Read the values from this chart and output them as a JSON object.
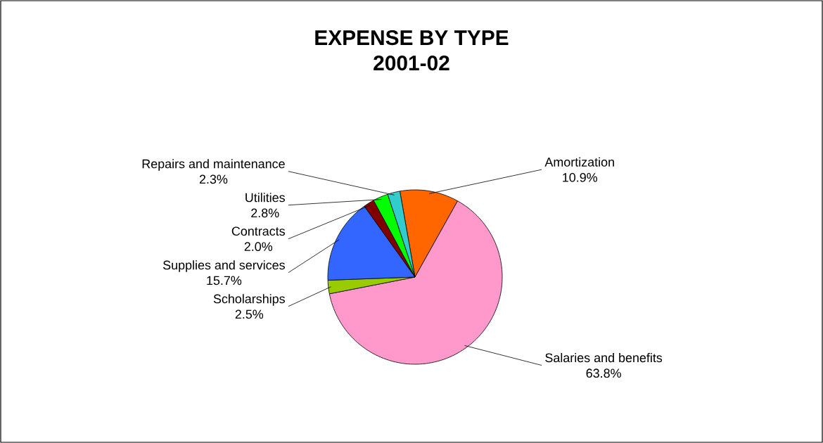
{
  "chart_data": {
    "type": "pie",
    "title": "EXPENSE BY TYPE",
    "subtitle": "2001-02",
    "categories": [
      "Amortization",
      "Salaries and benefits",
      "Scholarships",
      "Supplies and services",
      "Contracts",
      "Utilities",
      "Repairs and maintenance"
    ],
    "values": [
      10.9,
      63.8,
      2.5,
      15.7,
      2.0,
      2.8,
      2.3
    ],
    "value_labels": [
      "10.9%",
      "63.8%",
      "2.5%",
      "15.7%",
      "2.0%",
      "2.8%",
      "2.3%"
    ],
    "colors": [
      "#ff6600",
      "#ff99cc",
      "#99cc00",
      "#3366ff",
      "#800000",
      "#00ff00",
      "#33cccc"
    ]
  }
}
